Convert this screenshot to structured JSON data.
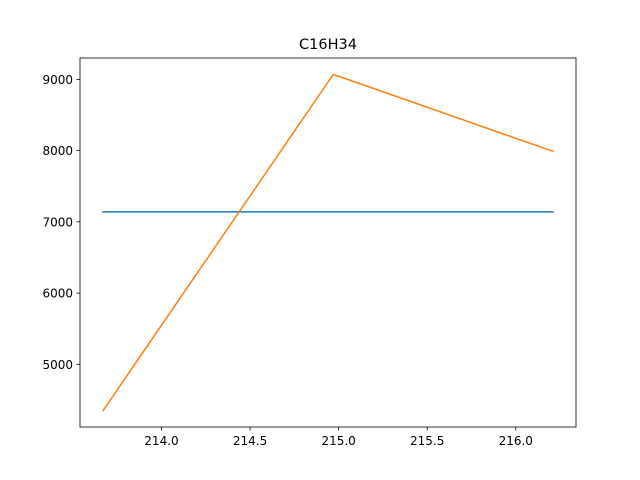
{
  "chart_data": {
    "type": "line",
    "title": "C16H34",
    "xlabel": "",
    "ylabel": "",
    "xlim": [
      213.54,
      216.34
    ],
    "ylim": [
      4120,
      9300
    ],
    "x_ticks": [
      214.0,
      214.5,
      215.0,
      215.5,
      216.0
    ],
    "x_tick_labels": [
      "214.0",
      "214.5",
      "215.0",
      "215.5",
      "216.0"
    ],
    "y_ticks": [
      5000,
      6000,
      7000,
      8000,
      9000
    ],
    "y_tick_labels": [
      "5000",
      "6000",
      "7000",
      "8000",
      "9000"
    ],
    "grid": false,
    "legend": "none",
    "series": [
      {
        "color": "#1f77b4",
        "x": [
          213.67,
          216.21
        ],
        "y": [
          7140,
          7140
        ]
      },
      {
        "color": "#ff7f0e",
        "x": [
          213.67,
          214.97,
          216.21
        ],
        "y": [
          4350,
          9070,
          7990
        ]
      }
    ]
  }
}
